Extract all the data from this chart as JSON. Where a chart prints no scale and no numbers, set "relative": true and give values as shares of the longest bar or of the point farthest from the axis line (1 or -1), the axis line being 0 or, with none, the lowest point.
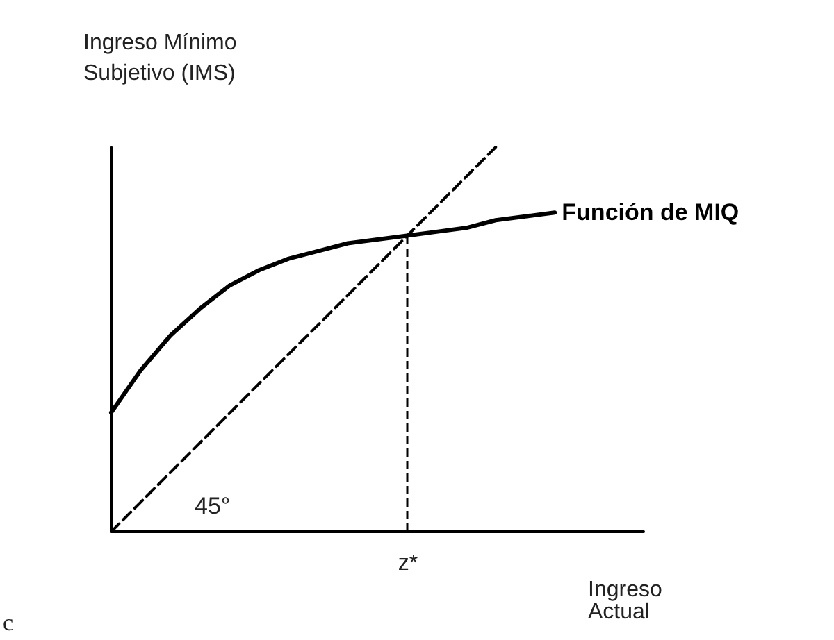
{
  "chart_data": {
    "type": "line",
    "relative": true,
    "ylabel": "Ingreso Mínimo\nSubjetivo (IMS)",
    "xlabel": "Ingreso\nActual",
    "categories": [
      null,
      null,
      null,
      null,
      null,
      null,
      null,
      null,
      null,
      null,
      null,
      null,
      null,
      null,
      null,
      null,
      null,
      null,
      null
    ],
    "series": [
      {
        "name": "Función de MIQ",
        "color": "#000000",
        "line_style": "solid",
        "values": [
          0.31,
          0.42,
          0.51,
          0.58,
          0.64,
          0.68,
          0.71,
          0.73,
          0.75,
          0.76,
          0.77,
          0.78,
          0.79,
          0.81,
          0.82,
          0.83,
          null,
          null,
          null
        ]
      },
      {
        "color": "#000000",
        "line_style": "dashed",
        "values": [
          0,
          0.077,
          0.154,
          0.231,
          0.308,
          0.385,
          0.462,
          0.538,
          0.615,
          0.692,
          0.769,
          0.846,
          0.923,
          1,
          null,
          null,
          null,
          null,
          null
        ]
      }
    ],
    "annotations": [
      "45°",
      "c",
      "z*"
    ],
    "marker": "none",
    "grid": false,
    "legend": false
  }
}
